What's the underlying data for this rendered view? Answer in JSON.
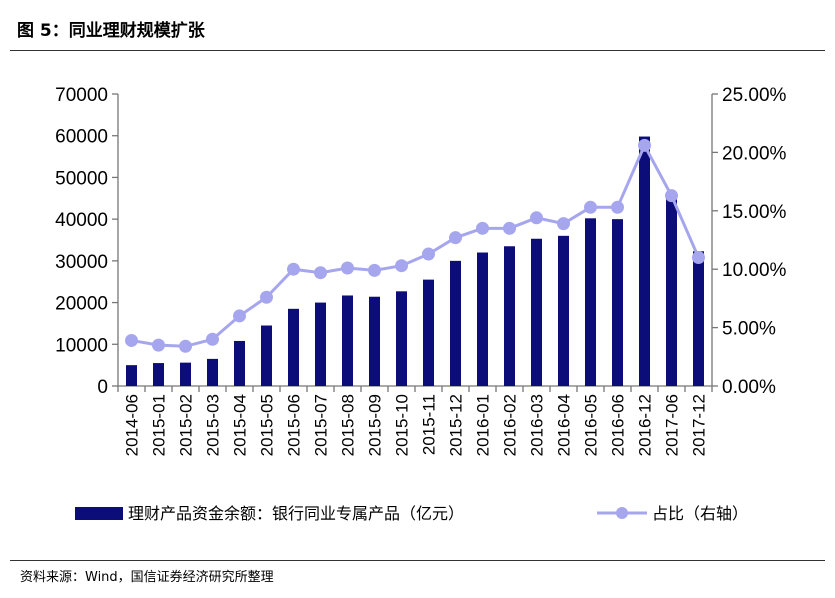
{
  "header": {
    "title": "图 5：同业理财规模扩张"
  },
  "footer": {
    "source": "资料来源：Wind，国信证券经济研究所整理"
  },
  "chart_data": {
    "type": "bar",
    "categories": [
      "2014-06",
      "2015-01",
      "2015-02",
      "2015-03",
      "2015-04",
      "2015-05",
      "2015-06",
      "2015-07",
      "2015-08",
      "2015-09",
      "2015-10",
      "2015-11",
      "2015-12",
      "2016-01",
      "2016-02",
      "2016-03",
      "2016-04",
      "2016-05",
      "2016-06",
      "2016-12",
      "2017-06",
      "2017-12"
    ],
    "series": [
      {
        "name": "理财产品资金余额：银行同业专属产品（亿元）",
        "type": "bar",
        "axis": "left",
        "color": "#0d0d7a",
        "values": [
          5000,
          5500,
          5600,
          6500,
          10800,
          14500,
          18500,
          20000,
          21700,
          21400,
          22700,
          25500,
          30000,
          32000,
          33500,
          35300,
          36000,
          40200,
          40000,
          59800,
          45600,
          32300
        ]
      },
      {
        "name": "占比（右轴）",
        "type": "line",
        "axis": "right",
        "color": "#a6a6ee",
        "values": [
          3.9,
          3.5,
          3.4,
          4.0,
          6.0,
          7.6,
          10.0,
          9.7,
          10.1,
          9.9,
          10.3,
          11.3,
          12.7,
          13.5,
          13.5,
          14.4,
          13.9,
          15.3,
          15.3,
          20.6,
          16.3,
          11.0
        ]
      }
    ],
    "y_left": {
      "min": 0,
      "max": 70000,
      "ticks": [
        "0",
        "10000",
        "20000",
        "30000",
        "40000",
        "50000",
        "60000",
        "70000"
      ]
    },
    "y_right": {
      "min": 0,
      "max": 25,
      "ticks": [
        "0.00%",
        "5.00%",
        "10.00%",
        "15.00%",
        "20.00%",
        "25.00%"
      ]
    },
    "grid": false,
    "legend_position": "bottom"
  }
}
